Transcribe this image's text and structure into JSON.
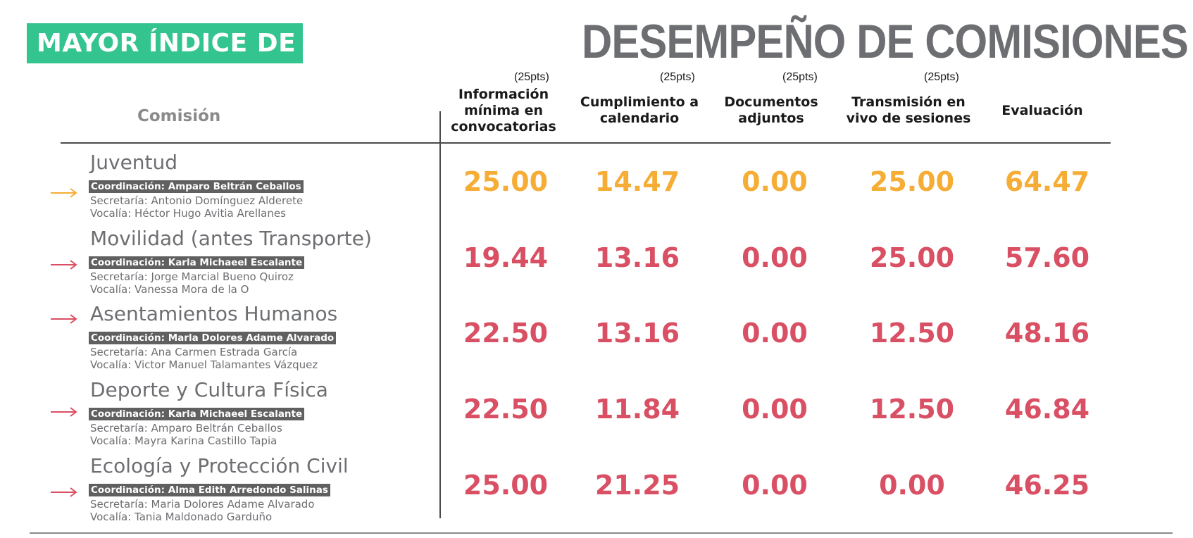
{
  "header": {
    "badge": "MAYOR ÍNDICE DE",
    "title": "DESEMPEÑO DE COMISIONES"
  },
  "table": {
    "comision_header": "Comisión",
    "columns": [
      {
        "pts": "(25pts)",
        "l1": "Información",
        "l2": "mínima en",
        "l3": "convocatorias"
      },
      {
        "pts": "(25pts)",
        "l1": "Cumplimiento a",
        "l2": "calendario",
        "l3": ""
      },
      {
        "pts": "(25pts)",
        "l1": "Documentos",
        "l2": "adjuntos",
        "l3": ""
      },
      {
        "pts": "(25pts)",
        "l1": "Transmisión en",
        "l2": "vivo de sesiones",
        "l3": ""
      },
      {
        "pts": "",
        "l1": "Evaluación",
        "l2": "",
        "l3": ""
      }
    ],
    "rows": [
      {
        "name": "Juventud",
        "coordinacion": "Coordinación: Amparo Beltrán Ceballos",
        "secretaria": "Secretaría: Antonio Domínguez Alderete",
        "vocalia": "Vocalía: Héctor Hugo Avitia Arellanes",
        "values": [
          "25.00",
          "14.47",
          "0.00",
          "25.00",
          "64.47"
        ],
        "color": "#f6ad35"
      },
      {
        "name": "Movilidad (antes Transporte)",
        "coordinacion": "Coordinación: Karla Michaeel Escalante",
        "secretaria": "Secretaría: Jorge Marcial Bueno Quiroz",
        "vocalia": "Vocalía: Vanessa Mora de la O",
        "values": [
          "19.44",
          "13.16",
          "0.00",
          "25.00",
          "57.60"
        ],
        "color": "#d94f63"
      },
      {
        "name": "Asentamientos Humanos",
        "coordinacion": "Coordinación: Marla Dolores Adame Alvarado",
        "secretaria": "Secretaría: Ana Carmen Estrada García",
        "vocalia": "Vocalía: Victor Manuel Talamantes Vázquez",
        "values": [
          "22.50",
          "13.16",
          "0.00",
          "12.50",
          "48.16"
        ],
        "color": "#d94f63"
      },
      {
        "name": "Deporte y Cultura Física",
        "coordinacion": "Coordinación: Karla Michaeel Escalante",
        "secretaria": "Secretaría: Amparo Beltrán Ceballos",
        "vocalia": "Vocalía: Mayra Karina Castillo Tapia",
        "values": [
          "22.50",
          "11.84",
          "0.00",
          "12.50",
          "46.84"
        ],
        "color": "#d94f63"
      },
      {
        "name": "Ecología y Protección Civil",
        "coordinacion": "Coordinación: Alma Edith Arredondo Salinas",
        "secretaria": "Secretaría: Maria Dolores Adame Alvarado",
        "vocalia": "Vocalía: Tania Maldonado Garduño",
        "values": [
          "25.00",
          "21.25",
          "0.00",
          "0.00",
          "46.25"
        ],
        "color": "#d94f63"
      }
    ]
  }
}
